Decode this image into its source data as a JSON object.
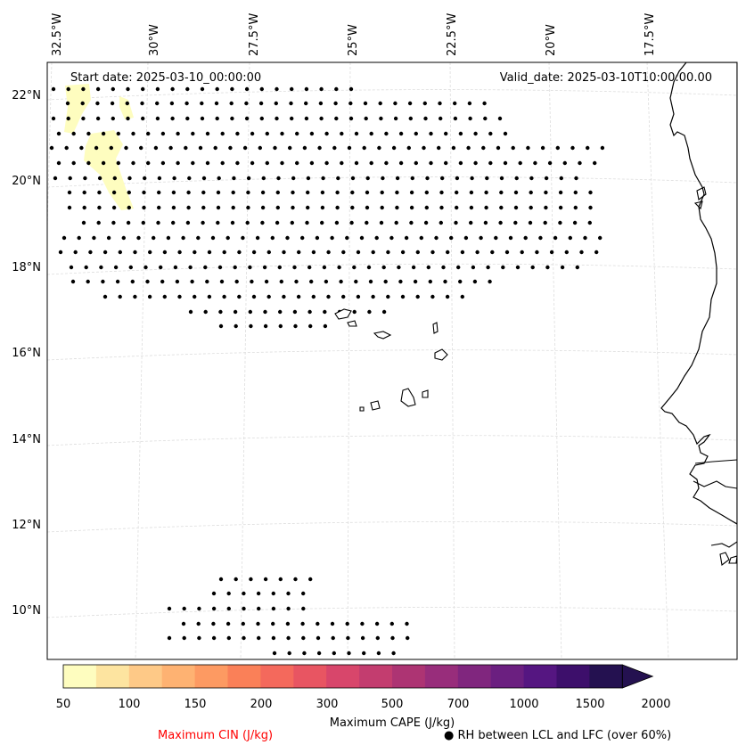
{
  "map": {
    "start_label": "Start date: 2025-03-10_00:00:00",
    "valid_label": "Valid_date: 2025-03-10T10:00:00.00",
    "lon_labels": [
      "32.5°W",
      "30°W",
      "27.5°W",
      "25°W",
      "22.5°W",
      "20°W",
      "17.5°W"
    ],
    "lat_labels": [
      "22°N",
      "20°N",
      "18°N",
      "16°N",
      "14°N",
      "12°N",
      "10°N"
    ]
  },
  "colorbar": {
    "title": "Maximum CAPE (J/kg)",
    "ticks": [
      "50",
      "100",
      "150",
      "200",
      "300",
      "500",
      "700",
      "1000",
      "1500",
      "2000"
    ],
    "colors": [
      "#fefdbf",
      "#fde4a0",
      "#fec987",
      "#feb272",
      "#fd9a62",
      "#fa8058",
      "#f4695c",
      "#e85562",
      "#d8466b",
      "#c33d6f",
      "#ad3473",
      "#982d7b",
      "#80267e",
      "#6b1f80",
      "#551681",
      "#3d0f6b",
      "#241150"
    ]
  },
  "legend": {
    "cin_label": "Maximum CIN (J/kg)",
    "cin_color": "#ff0000",
    "rh_label": "● RH between LCL and LFC (over 60%)"
  }
}
